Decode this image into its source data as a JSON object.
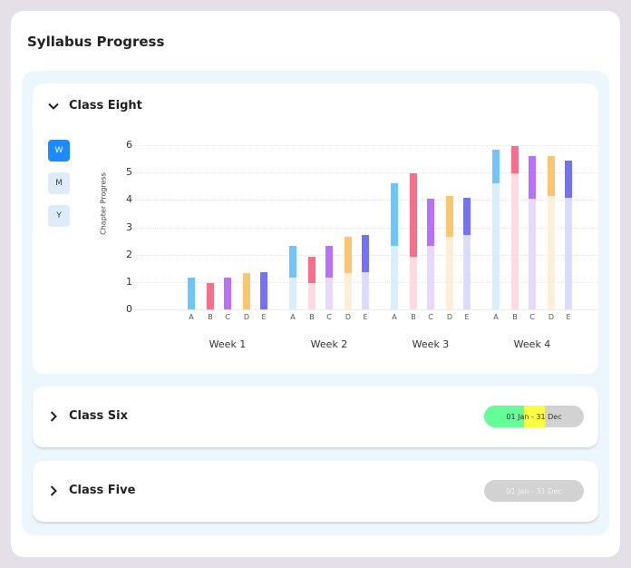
{
  "page": {
    "title": "Syllabus Progress"
  },
  "panels": [
    {
      "title": "Class Eight",
      "expanded": true
    },
    {
      "title": "Class Six",
      "expanded": false,
      "date_range": "01 Jan - 31 Dec",
      "progress_colors": {
        "done": "#66fc9a",
        "current": "#fdfc40",
        "remaining": "#d2d2d2"
      }
    },
    {
      "title": "Class Five",
      "expanded": false,
      "date_range": "01 Jan - 31 Dec",
      "progress_colors": {
        "remaining": "#d2d2d2"
      }
    }
  ],
  "period_toggles": [
    {
      "label": "W",
      "active": true
    },
    {
      "label": "M",
      "active": false
    },
    {
      "label": "Y",
      "active": false
    }
  ],
  "icons": {
    "expanded": "chevron-down-icon",
    "collapsed": "chevron-right-icon"
  },
  "chart_data": {
    "type": "bar",
    "stacked_cumulative": true,
    "title": "",
    "xlabel": "",
    "ylabel": "Chapter Progress",
    "ylim": [
      0,
      6
    ],
    "yticks": [
      0,
      1,
      2,
      3,
      4,
      5,
      6
    ],
    "grid": true,
    "legend": "none",
    "groups": [
      "Week 1",
      "Week 2",
      "Week 3",
      "Week 4"
    ],
    "categories": [
      "A",
      "B",
      "C",
      "D",
      "E"
    ],
    "colors": {
      "A": {
        "dark": "#6cc6fd",
        "light": "#d9eefc"
      },
      "B": {
        "dark": "#fd6c89",
        "light": "#fddbe2"
      },
      "C": {
        "dark": "#b771fd",
        "light": "#e7d8fc"
      },
      "D": {
        "dark": "#fec56f",
        "light": "#feefd9"
      },
      "E": {
        "dark": "#7171fd",
        "light": "#dcdbfc"
      }
    },
    "series": [
      {
        "name": "Week 1",
        "values": [
          1.16,
          0.96,
          1.16,
          1.32,
          1.36
        ]
      },
      {
        "name": "Week 2",
        "values": [
          2.32,
          1.92,
          2.32,
          2.65,
          2.72
        ]
      },
      {
        "name": "Week 3",
        "values": [
          4.6,
          4.97,
          4.04,
          4.14,
          4.07
        ]
      },
      {
        "name": "Week 4",
        "values": [
          5.83,
          5.96,
          5.6,
          5.6,
          5.43
        ]
      }
    ]
  }
}
